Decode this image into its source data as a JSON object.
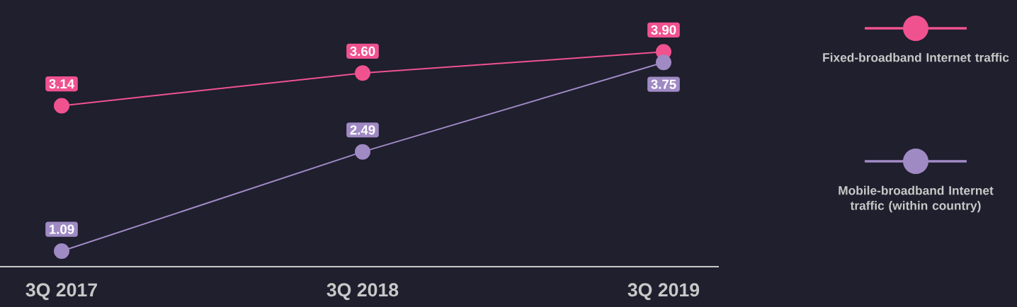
{
  "chart_data": {
    "type": "line",
    "categories": [
      "3Q 2017",
      "3Q 2018",
      "3Q 2019"
    ],
    "series": [
      {
        "name": "Fixed-broadband Internet traffic",
        "color": "#f0528f",
        "values": [
          3.14,
          3.6,
          3.9
        ],
        "value_labels": [
          "3.14",
          "3.60",
          "3.90"
        ]
      },
      {
        "name": "Mobile-broadband Internet traffic (within country)",
        "color": "#a08ac4",
        "values": [
          1.09,
          2.49,
          3.75
        ],
        "value_labels": [
          "1.09",
          "2.49",
          "3.75"
        ]
      }
    ],
    "marker": "circle",
    "line_style": "solid",
    "legend": "right"
  }
}
